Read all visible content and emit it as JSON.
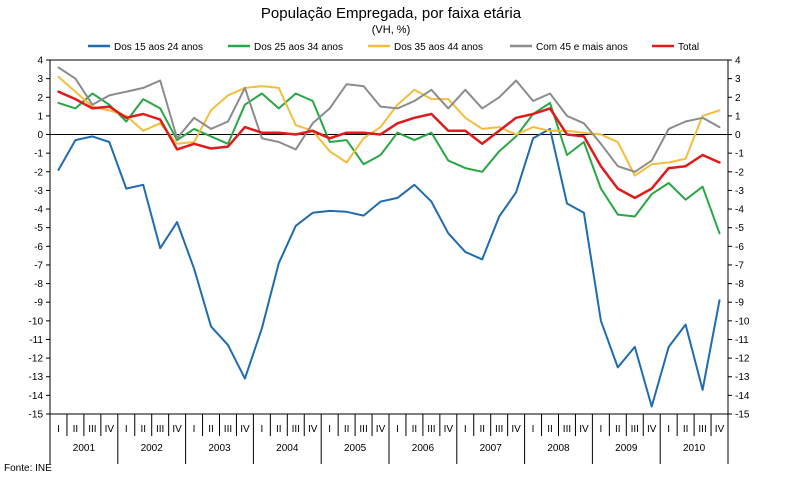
{
  "chart_data": {
    "type": "line",
    "title": "População Empregada, por faixa etária",
    "subtitle": "(VH, %)",
    "source": "Fonte: INE",
    "ylim": [
      -15,
      4
    ],
    "yticks": [
      4,
      3,
      2,
      1,
      0,
      -1,
      -2,
      -3,
      -4,
      -5,
      -6,
      -7,
      -8,
      -9,
      -10,
      -11,
      -12,
      -13,
      -14,
      -15
    ],
    "quarters": [
      "I",
      "II",
      "III",
      "IV"
    ],
    "years": [
      "2001",
      "2002",
      "2003",
      "2004",
      "2005",
      "2006",
      "2007",
      "2008",
      "2009",
      "2010"
    ],
    "series": [
      {
        "name": "Dos 15 aos 24 anos",
        "color": "#1f6cb0",
        "values": [
          -1.9,
          -0.3,
          -0.1,
          -0.4,
          -2.9,
          -2.7,
          -6.1,
          -4.7,
          -7.2,
          -10.3,
          -11.3,
          -13.1,
          -10.4,
          -6.9,
          -4.9,
          -4.2,
          -4.1,
          -4.15,
          -4.35,
          -3.6,
          -3.4,
          -2.7,
          -3.6,
          -5.3,
          -6.3,
          -6.7,
          -4.4,
          -3.1,
          -0.2,
          0.3,
          -3.7,
          -4.2,
          -10.0,
          -12.5,
          -11.4,
          -14.6,
          -11.4,
          -10.2,
          -13.7,
          -8.9
        ]
      },
      {
        "name": "Dos 25 aos 34 anos",
        "color": "#28a745",
        "values": [
          1.7,
          1.4,
          2.2,
          1.6,
          0.7,
          1.9,
          1.4,
          -0.3,
          0.3,
          -0.1,
          -0.5,
          1.6,
          2.2,
          1.4,
          2.2,
          1.8,
          -0.4,
          -0.3,
          -1.6,
          -1.1,
          0.1,
          -0.3,
          0.1,
          -1.4,
          -1.8,
          -2.0,
          -0.9,
          -0.1,
          1.1,
          1.7,
          -1.1,
          -0.4,
          -2.9,
          -4.3,
          -4.4,
          -3.2,
          -2.6,
          -3.5,
          -2.8,
          -5.3
        ]
      },
      {
        "name": "Dos 35 aos 44 anos",
        "color": "#f2be3c",
        "values": [
          3.1,
          2.3,
          1.5,
          1.3,
          1.0,
          0.2,
          0.6,
          -0.5,
          -0.4,
          1.3,
          2.1,
          2.5,
          2.6,
          2.5,
          0.5,
          0.2,
          -0.9,
          -1.5,
          -0.2,
          0.4,
          1.6,
          2.4,
          1.9,
          1.9,
          0.9,
          0.3,
          0.4,
          0.0,
          0.4,
          0.2,
          0.2,
          0.1,
          0.0,
          -0.4,
          -2.2,
          -1.6,
          -1.5,
          -1.3,
          1.0,
          1.3
        ]
      },
      {
        "name": "Com 45 e mais anos",
        "color": "#8c8c8c",
        "values": [
          3.6,
          3.0,
          1.6,
          2.1,
          2.3,
          2.5,
          2.9,
          -0.2,
          0.9,
          0.3,
          0.7,
          2.5,
          -0.2,
          -0.4,
          -0.8,
          0.6,
          1.4,
          2.7,
          2.6,
          1.5,
          1.4,
          1.8,
          2.4,
          1.4,
          2.4,
          1.4,
          2.0,
          2.9,
          1.8,
          2.2,
          1.0,
          0.6,
          -0.5,
          -1.7,
          -2.0,
          -1.4,
          0.3,
          0.7,
          0.9,
          0.4
        ]
      },
      {
        "name": "Total",
        "color": "#e01b1b",
        "values": [
          2.3,
          1.9,
          1.4,
          1.5,
          0.9,
          1.1,
          0.8,
          -0.8,
          -0.5,
          -0.75,
          -0.65,
          0.4,
          0.1,
          0.1,
          0.0,
          0.2,
          -0.2,
          0.1,
          0.1,
          0.0,
          0.6,
          0.9,
          1.1,
          0.2,
          0.2,
          -0.5,
          0.2,
          0.9,
          1.1,
          1.4,
          0.0,
          -0.1,
          -1.7,
          -2.9,
          -3.4,
          -2.9,
          -1.8,
          -1.7,
          -1.1,
          -1.5
        ]
      }
    ]
  }
}
